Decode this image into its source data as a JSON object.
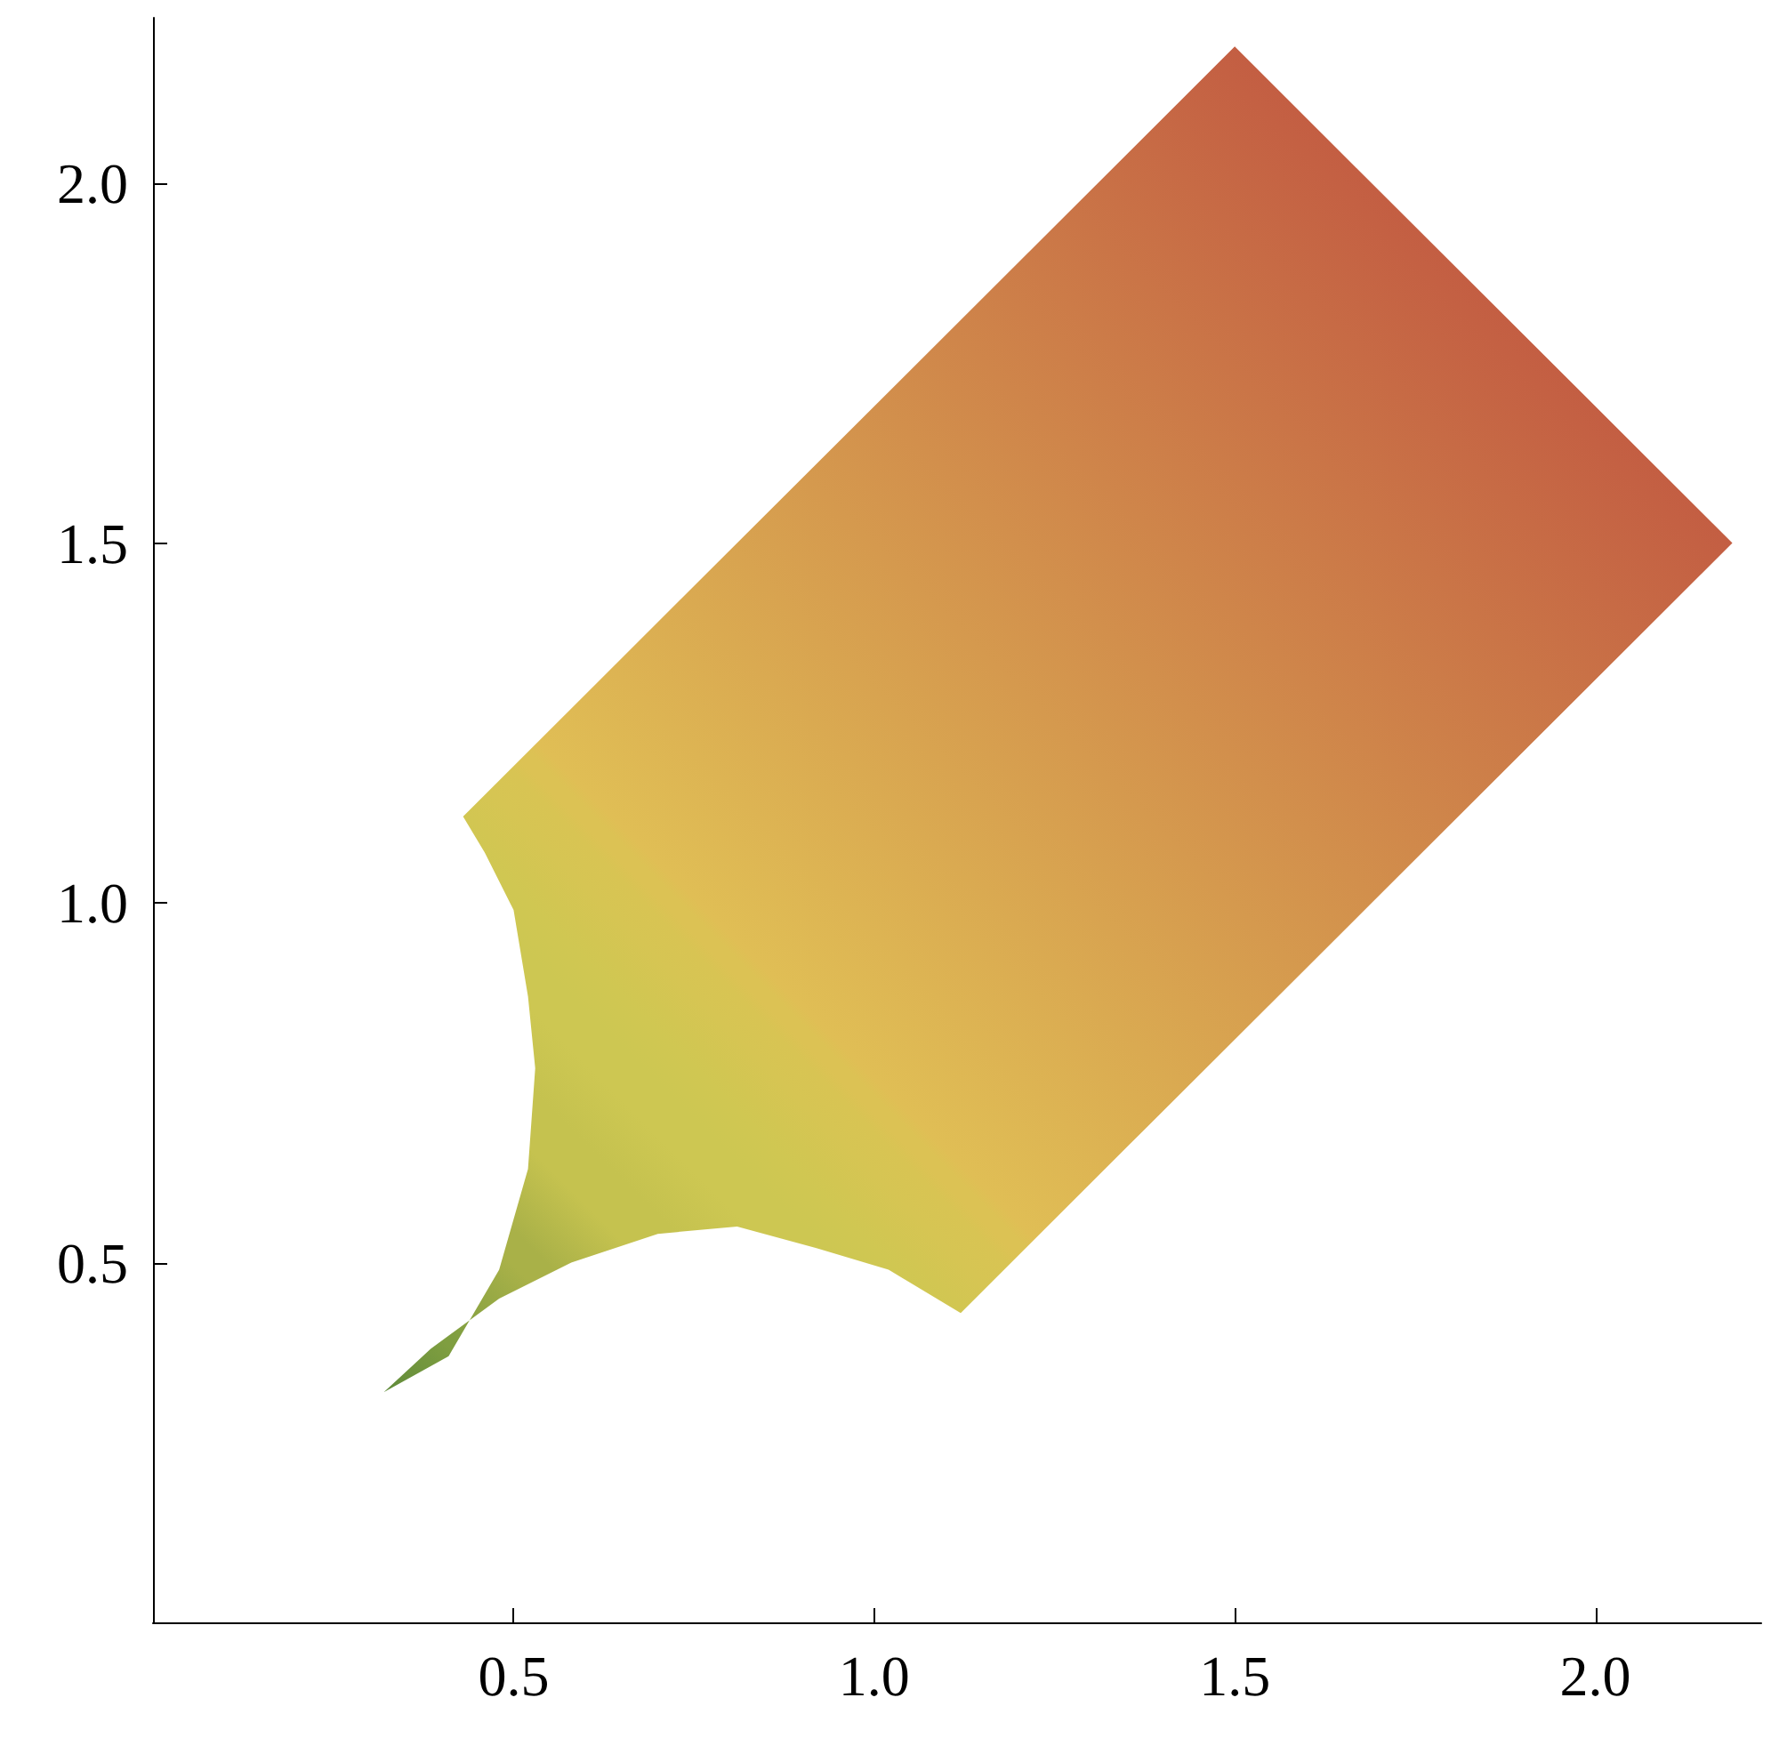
{
  "chart_data": {
    "type": "area",
    "x": [
      0.43,
      1.5,
      2.19,
      1.12,
      1.02,
      0.92,
      0.81,
      0.7,
      0.58,
      0.48,
      0.385,
      0.32,
      0.41,
      0.48,
      0.52,
      0.53,
      0.52,
      0.5,
      0.46,
      0.43
    ],
    "values": [
      1.12,
      2.19,
      1.5,
      0.43,
      0.49,
      0.52,
      0.55,
      0.54,
      0.5,
      0.45,
      0.38,
      0.32,
      0.37,
      0.49,
      0.63,
      0.77,
      0.87,
      0.99,
      1.07,
      1.12
    ],
    "colors": [
      "#e0be55",
      "#b93c3c",
      "#b93c3c",
      "#e0be55",
      "#dcc254",
      "#d6c553",
      "#d0c752",
      "#cdc752",
      "#c5c24f",
      "#a9b148",
      "#7f9e40",
      "#5f8a3a",
      "#7f9e40",
      "#a9b148",
      "#c5c24f",
      "#cdc752",
      "#d2c652",
      "#d8c453",
      "#dcc254",
      "#e0be55"
    ],
    "xlim": [
      0,
      2.23
    ],
    "ylim": [
      0,
      2.23
    ],
    "xticks": [
      {
        "value": 0.5,
        "label": "0.5"
      },
      {
        "value": 1,
        "label": "1.0"
      },
      {
        "value": 1.5,
        "label": "1.5"
      },
      {
        "value": 2,
        "label": "2.0"
      }
    ],
    "yticks": [
      {
        "value": 0.5,
        "label": "0.5"
      },
      {
        "value": 1,
        "label": "1.0"
      },
      {
        "value": 1.5,
        "label": "1.5"
      },
      {
        "value": 2,
        "label": "2.0"
      }
    ],
    "grid": false
  }
}
